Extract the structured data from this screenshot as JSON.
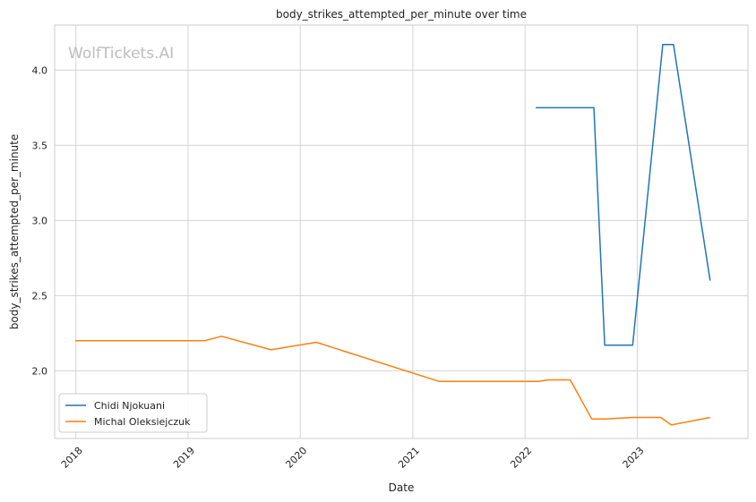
{
  "chart_data": {
    "type": "line",
    "title": "body_strikes_attempted_per_minute over time",
    "xlabel": "Date",
    "ylabel": "body_strikes_attempted_per_minute",
    "watermark": "WolfTickets.AI",
    "xlim": [
      "2017-10-24",
      "2023-12-27"
    ],
    "ylim": [
      1.55,
      4.3
    ],
    "x_ticks": [
      "2018",
      "2019",
      "2020",
      "2021",
      "2022",
      "2023"
    ],
    "y_ticks": [
      2.0,
      2.5,
      3.0,
      3.5,
      4.0
    ],
    "grid": true,
    "legend_position": "lower-left",
    "series": [
      {
        "name": "Chidi Njokuani",
        "color": "#1f77b4",
        "x": [
          "2022-02-05",
          "2022-08-13",
          "2022-09-17",
          "2022-12-17",
          "2023-03-25",
          "2023-04-29",
          "2023-08-26"
        ],
        "y": [
          3.75,
          3.75,
          2.17,
          2.17,
          4.17,
          4.17,
          2.6
        ]
      },
      {
        "name": "Michal Oleksiejczuk",
        "color": "#ff7f0e",
        "x": [
          "2017-12-30",
          "2019-02-23",
          "2019-04-20",
          "2019-09-28",
          "2020-02-22",
          "2021-03-27",
          "2022-02-12",
          "2022-03-19",
          "2022-05-28",
          "2022-08-06",
          "2022-09-17",
          "2022-12-17",
          "2023-03-18",
          "2023-04-22",
          "2023-08-26"
        ],
        "y": [
          2.2,
          2.2,
          2.23,
          2.14,
          2.19,
          1.93,
          1.93,
          1.94,
          1.94,
          1.68,
          1.68,
          1.69,
          1.69,
          1.64,
          1.69
        ]
      }
    ]
  }
}
